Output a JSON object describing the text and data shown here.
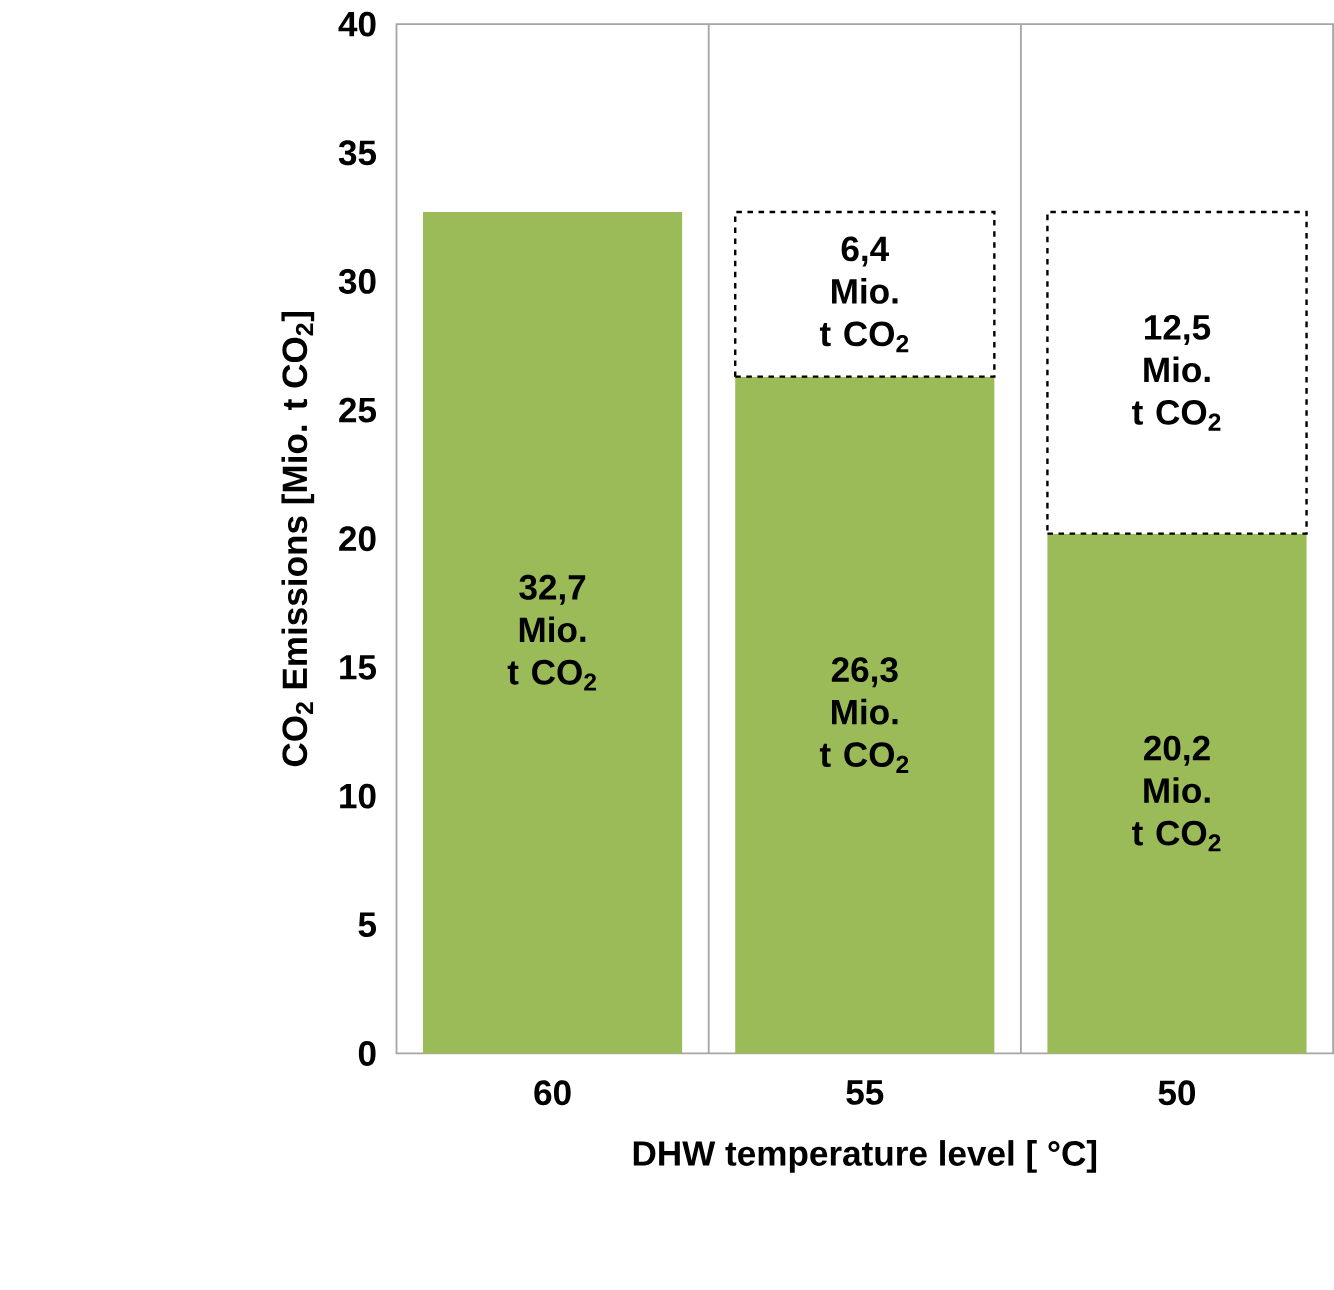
{
  "chart_data": {
    "type": "bar",
    "stacked": true,
    "xlabel": "DHW temperature level [ °C]",
    "ylabel": "CO$_{2}$ Emissions [Mio. t CO$_{2}$]",
    "categories": [
      "60",
      "55",
      "50"
    ],
    "series": [
      {
        "color": "#9bbb59",
        "values": [
          32.7,
          26.3,
          20.2
        ],
        "value_labels": [
          "32,7 Mio. t CO$_{2}$",
          "26,3 Mio. t CO$_{2}$",
          "20,2 Mio. t CO$_{2}$"
        ]
      },
      {
        "color": "#ffffff",
        "line_style": "dashed",
        "values": [
          null,
          6.4,
          12.5
        ],
        "value_labels": [
          null,
          "6,4 Mio. t CO$_{2}$",
          "12,5 Mio. t CO$_{2}$"
        ]
      }
    ],
    "ylim": [
      0,
      40
    ],
    "yticks": [
      0,
      5,
      10,
      15,
      20,
      25,
      30,
      35,
      40
    ],
    "grid": "x"
  }
}
